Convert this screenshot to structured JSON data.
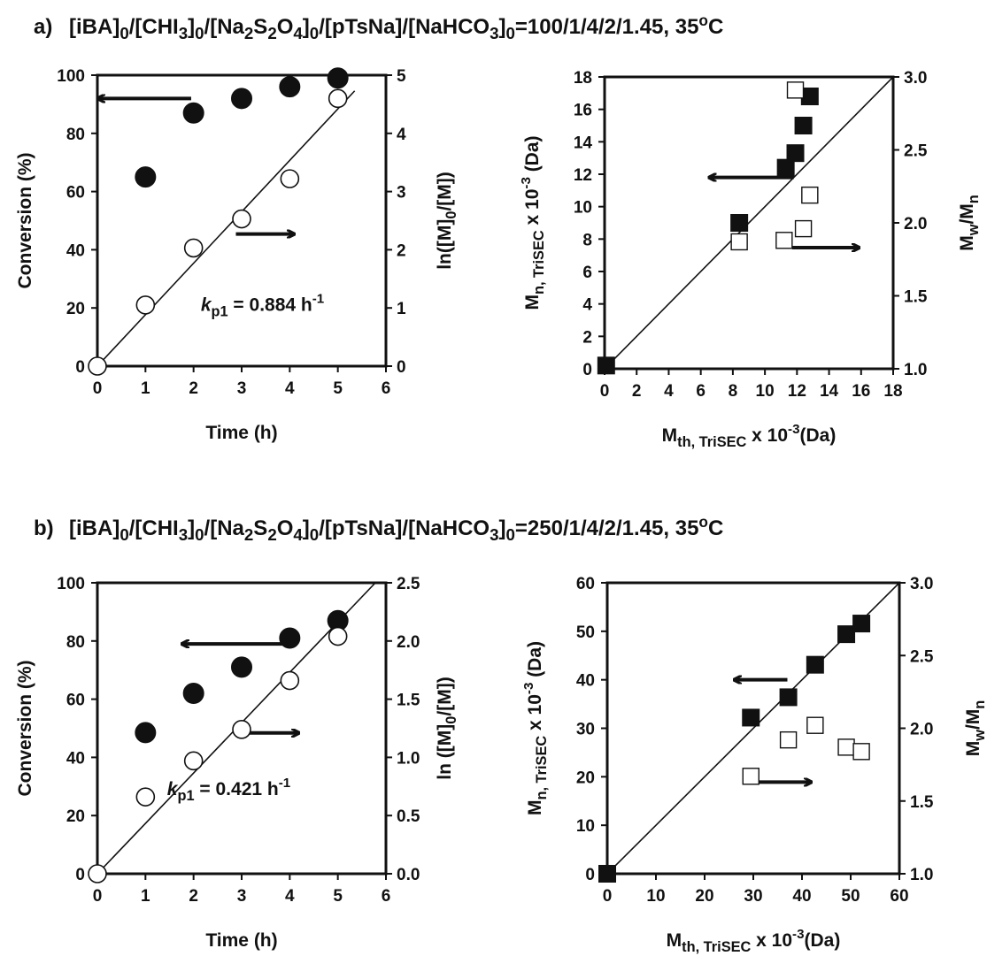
{
  "chart_data": [
    {
      "id": "a-left",
      "type": "scatter",
      "row_title": {
        "tag": "a)",
        "parts": [
          [
            "[iBA]",
            ""
          ],
          [
            "0",
            "sub"
          ],
          [
            "/[CHI",
            ""
          ],
          [
            "3",
            "sub"
          ],
          [
            "]",
            ""
          ],
          [
            "0",
            "sub"
          ],
          [
            "/[Na",
            ""
          ],
          [
            "2",
            "sub"
          ],
          [
            "S",
            ""
          ],
          [
            "2",
            "sub"
          ],
          [
            "O",
            ""
          ],
          [
            "4",
            "sub"
          ],
          [
            "]",
            ""
          ],
          [
            "0",
            "sub"
          ],
          [
            "/[pTsNa]/[NaHCO",
            ""
          ],
          [
            "3",
            "sub"
          ],
          [
            "]",
            ""
          ],
          [
            "0",
            "sub"
          ],
          [
            "=100/1/4/2/1.45, 35",
            ""
          ],
          [
            "o",
            "sup"
          ],
          [
            "C",
            ""
          ]
        ]
      },
      "xlabel": [
        [
          "Time (h)",
          ""
        ]
      ],
      "ylabel_left": [
        [
          "Conversion (%)",
          ""
        ]
      ],
      "ylabel_right": [
        [
          "ln([M]",
          ""
        ],
        [
          "0",
          "sub"
        ],
        [
          "/[M])",
          ""
        ]
      ],
      "xlim": [
        0,
        6
      ],
      "xticks": [
        0,
        1,
        2,
        3,
        4,
        5,
        6
      ],
      "ylim_left": [
        0,
        100
      ],
      "yticks_left": [
        0,
        20,
        40,
        60,
        80,
        100
      ],
      "ylim_right": [
        0,
        5
      ],
      "yticks_right": [
        0,
        1,
        2,
        3,
        4,
        5
      ],
      "series": [
        {
          "axis": "left",
          "marker": "filled-circle",
          "x": [
            1,
            2,
            3,
            4,
            5
          ],
          "y": [
            65,
            87,
            92,
            96,
            99
          ]
        },
        {
          "axis": "right",
          "marker": "open-circle",
          "x": [
            0,
            1,
            2,
            3,
            4,
            5
          ],
          "y": [
            0,
            1.05,
            2.03,
            2.53,
            3.22,
            4.6
          ]
        }
      ],
      "fit_line": {
        "axis": "right",
        "x": [
          0,
          5.35
        ],
        "y": [
          0,
          4.73
        ]
      },
      "annotation": [
        [
          "k",
          "i"
        ],
        [
          "p1",
          "sub"
        ],
        [
          " = 0.884 h",
          ""
        ],
        [
          "-1",
          "sup"
        ]
      ],
      "arrows": [
        {
          "from": [
            1.95,
            92
          ],
          "to": [
            0.0,
            92
          ],
          "direction": "left"
        },
        {
          "from": [
            2.88,
            2.27
          ],
          "to": [
            4.1,
            2.27
          ],
          "direction": "right"
        }
      ]
    },
    {
      "id": "a-right",
      "type": "scatter",
      "xlabel": [
        [
          "M",
          ""
        ],
        [
          "th, TriSEC",
          "sub"
        ],
        [
          " x 10",
          ""
        ],
        [
          "-3",
          "sup"
        ],
        [
          "(Da)",
          ""
        ]
      ],
      "ylabel_left": [
        [
          "M",
          ""
        ],
        [
          "n, TriSEC",
          "sub"
        ],
        [
          " x 10",
          ""
        ],
        [
          "-3",
          "sup"
        ],
        [
          " (Da)",
          ""
        ]
      ],
      "ylabel_right": [
        [
          "M",
          ""
        ],
        [
          "w",
          "sub"
        ],
        [
          "/M",
          ""
        ],
        [
          "n",
          "sub"
        ]
      ],
      "xlim": [
        0,
        18
      ],
      "xticks": [
        0,
        2,
        4,
        6,
        8,
        10,
        12,
        14,
        16,
        18
      ],
      "ylim_left": [
        0,
        18
      ],
      "yticks_left": [
        0,
        2,
        4,
        6,
        8,
        10,
        12,
        14,
        16,
        18
      ],
      "ylim_right": [
        1.0,
        3.0
      ],
      "yticks_right": [
        "1.0",
        "1.5",
        "2.0",
        "2.5",
        "3.0"
      ],
      "series": [
        {
          "axis": "left",
          "marker": "filled-square",
          "x": [
            0.1,
            8.4,
            11.3,
            11.9,
            12.4,
            12.8
          ],
          "y": [
            0.2,
            9.0,
            12.4,
            13.3,
            15.0,
            16.8
          ]
        },
        {
          "axis": "right",
          "marker": "open-square",
          "x": [
            8.4,
            11.2,
            11.9,
            12.4,
            12.8
          ],
          "y": [
            1.87,
            1.88,
            2.91,
            1.96,
            2.19
          ]
        }
      ],
      "fit_line": {
        "axis": "left",
        "x": [
          0,
          18
        ],
        "y": [
          0,
          18
        ]
      },
      "arrows": [
        {
          "from": [
            11.8,
            11.8
          ],
          "to": [
            6.5,
            11.8
          ],
          "direction": "left"
        },
        {
          "from": [
            11.7,
            1.83
          ],
          "to": [
            15.9,
            1.83
          ],
          "direction": "right"
        }
      ]
    },
    {
      "id": "b-left",
      "type": "scatter",
      "row_title": {
        "tag": "b)",
        "parts": [
          [
            "[iBA]",
            ""
          ],
          [
            "0",
            "sub"
          ],
          [
            "/[CHI",
            ""
          ],
          [
            "3",
            "sub"
          ],
          [
            "]",
            ""
          ],
          [
            "0",
            "sub"
          ],
          [
            "/[Na",
            ""
          ],
          [
            "2",
            "sub"
          ],
          [
            "S",
            ""
          ],
          [
            "2",
            "sub"
          ],
          [
            "O",
            ""
          ],
          [
            "4",
            "sub"
          ],
          [
            "]",
            ""
          ],
          [
            "0",
            "sub"
          ],
          [
            "/[pTsNa]/[NaHCO",
            ""
          ],
          [
            "3",
            "sub"
          ],
          [
            "]",
            ""
          ],
          [
            "0",
            "sub"
          ],
          [
            "=250/1/4/2/1.45, 35",
            ""
          ],
          [
            "o",
            "sup"
          ],
          [
            "C",
            ""
          ]
        ]
      },
      "xlabel": [
        [
          "Time (h)",
          ""
        ]
      ],
      "ylabel_left": [
        [
          "Conversion (%)",
          ""
        ]
      ],
      "ylabel_right": [
        [
          "ln ([M]",
          ""
        ],
        [
          "0",
          "sub"
        ],
        [
          "/[M])",
          ""
        ]
      ],
      "xlim": [
        0,
        6
      ],
      "xticks": [
        0,
        1,
        2,
        3,
        4,
        5,
        6
      ],
      "ylim_left": [
        0,
        100
      ],
      "yticks_left": [
        0,
        20,
        40,
        60,
        80,
        100
      ],
      "ylim_right": [
        0.0,
        2.5
      ],
      "yticks_right": [
        "0.0",
        "0.5",
        "1.0",
        "1.5",
        "2.0",
        "2.5"
      ],
      "series": [
        {
          "axis": "left",
          "marker": "filled-circle",
          "x": [
            1,
            2,
            3,
            4,
            5
          ],
          "y": [
            48.5,
            62,
            71,
            81,
            87
          ]
        },
        {
          "axis": "right",
          "marker": "open-circle",
          "x": [
            0,
            1,
            2,
            3,
            4,
            5
          ],
          "y": [
            0,
            0.66,
            0.97,
            1.24,
            1.66,
            2.04
          ]
        }
      ],
      "fit_line": {
        "axis": "right",
        "x": [
          0,
          5.78
        ],
        "y": [
          0,
          2.5
        ]
      },
      "annotation": [
        [
          "k",
          "i"
        ],
        [
          "p1",
          "sub"
        ],
        [
          " = 0.421 h",
          ""
        ],
        [
          "-1",
          "sup"
        ]
      ],
      "arrows": [
        {
          "from": [
            3.95,
            79
          ],
          "to": [
            1.75,
            79
          ],
          "direction": "left"
        },
        {
          "from": [
            2.93,
            1.21
          ],
          "to": [
            4.2,
            1.21
          ],
          "direction": "right"
        }
      ]
    },
    {
      "id": "b-right",
      "type": "scatter",
      "xlabel": [
        [
          "M",
          ""
        ],
        [
          "th, TriSEC",
          "sub"
        ],
        [
          " x 10",
          ""
        ],
        [
          "-3",
          "sup"
        ],
        [
          "(Da)",
          ""
        ]
      ],
      "ylabel_left": [
        [
          "M",
          ""
        ],
        [
          "n, TriSEC",
          "sub"
        ],
        [
          " x 10",
          ""
        ],
        [
          "-3",
          "sup"
        ],
        [
          " (Da)",
          ""
        ]
      ],
      "ylabel_right": [
        [
          "M",
          ""
        ],
        [
          "w",
          "sub"
        ],
        [
          "/M",
          ""
        ],
        [
          "n",
          "sub"
        ]
      ],
      "xlim": [
        0,
        60
      ],
      "xticks": [
        0,
        10,
        20,
        30,
        40,
        50,
        60
      ],
      "ylim_left": [
        0,
        60
      ],
      "yticks_left": [
        0,
        10,
        20,
        30,
        40,
        50,
        60
      ],
      "ylim_right": [
        1.0,
        3.0
      ],
      "yticks_right": [
        "1.0",
        "1.5",
        "2.0",
        "2.5",
        "3.0"
      ],
      "series": [
        {
          "axis": "left",
          "marker": "filled-square",
          "x": [
            0,
            29.5,
            37.2,
            42.7,
            49.1,
            52.2
          ],
          "y": [
            0,
            32.2,
            36.4,
            43.1,
            49.4,
            51.6
          ]
        },
        {
          "axis": "right",
          "marker": "open-square",
          "x": [
            29.5,
            37.2,
            42.7,
            49.1,
            52.2
          ],
          "y": [
            1.67,
            1.92,
            2.02,
            1.87,
            1.84
          ]
        }
      ],
      "fit_line": {
        "axis": "left",
        "x": [
          0,
          60
        ],
        "y": [
          0,
          60
        ]
      },
      "arrows": [
        {
          "from": [
            37,
            40
          ],
          "to": [
            26,
            40
          ],
          "direction": "left"
        },
        {
          "from": [
            29.8,
            1.63
          ],
          "to": [
            42,
            1.63
          ],
          "direction": "right"
        }
      ]
    }
  ]
}
